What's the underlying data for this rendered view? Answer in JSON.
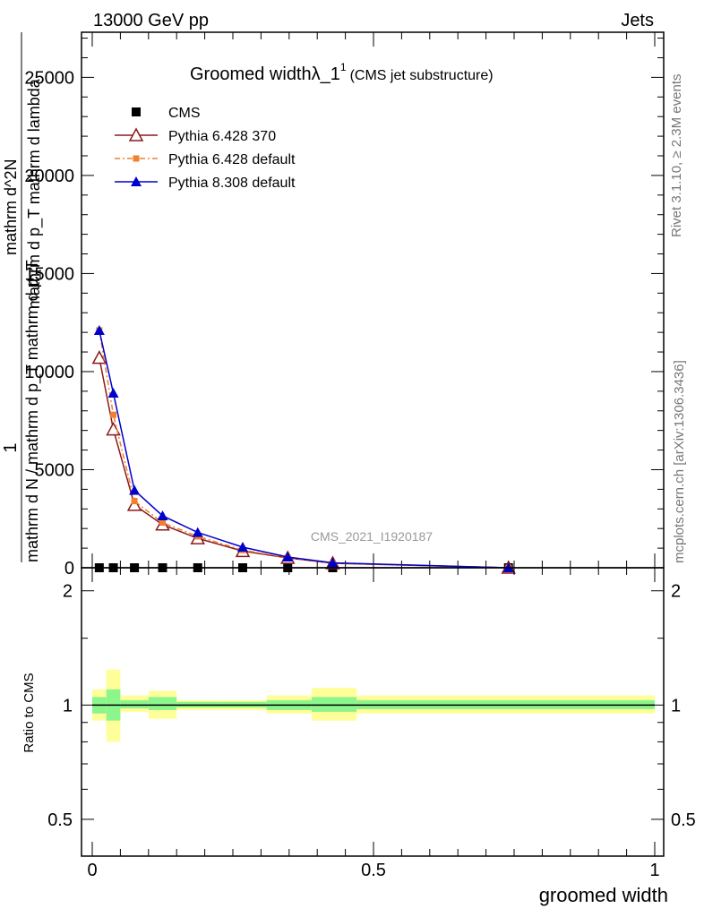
{
  "header": {
    "energy_label": "13000 GeV pp",
    "process_label": "Jets",
    "rivet_label": "Rivet 3.1.10, ≥ 2.3M events",
    "mcplots_label": "mcplots.cern.ch [arXiv:1306.3436]",
    "analysis_label": "CMS_2021_I1920187"
  },
  "chart_data": [
    {
      "type": "line",
      "title": "Groomed width",
      "title_lambda": "λ_1",
      "title_sup": "1",
      "subtitle": "(CMS jet substructure)",
      "ylabel_parts": [
        "1",
        "mathrm d N / mathrm d p_T mathrm d p_T",
        "mathrm d^2N",
        "mathrm d p_T mathrm d lambda"
      ],
      "xlabel": "groomed width",
      "xlim": [
        0,
        1
      ],
      "ylim": [
        0,
        27300
      ],
      "yticks": [
        0,
        5000,
        10000,
        15000,
        20000,
        25000
      ],
      "ytick_labels": [
        "0",
        "5000",
        "10000",
        "15000",
        "20000",
        "25000"
      ],
      "legend_position": "top-left",
      "series": [
        {
          "name": "CMS",
          "color": "#000000",
          "marker": "square",
          "line": "none",
          "x": [
            0.0125,
            0.0375,
            0.075,
            0.125,
            0.1875,
            0.2675,
            0.3475,
            0.4275,
            0.74
          ],
          "values": [
            0,
            0,
            0,
            0,
            0,
            0,
            0,
            0,
            0
          ]
        },
        {
          "name": "Pythia 6.428 370",
          "color": "#8b1a1a",
          "marker": "open-triangle",
          "line": "solid",
          "x": [
            0.0125,
            0.0375,
            0.075,
            0.125,
            0.1875,
            0.2675,
            0.3475,
            0.4275,
            0.74
          ],
          "values": [
            10700,
            7050,
            3200,
            2200,
            1500,
            850,
            500,
            230,
            0
          ]
        },
        {
          "name": "Pythia 6.428 default",
          "color": "#f08030",
          "marker": "square",
          "line": "dashdot",
          "x": [
            0.0125,
            0.0375,
            0.075,
            0.125,
            0.1875,
            0.2675,
            0.3475,
            0.4275,
            0.74
          ],
          "values": [
            12100,
            7800,
            3400,
            2300,
            1600,
            900,
            520,
            240,
            0
          ]
        },
        {
          "name": "Pythia 8.308 default",
          "color": "#0000cc",
          "marker": "triangle",
          "line": "solid",
          "x": [
            0.0125,
            0.0375,
            0.075,
            0.125,
            0.1875,
            0.2675,
            0.3475,
            0.4275,
            0.74
          ],
          "values": [
            12100,
            8900,
            3950,
            2650,
            1800,
            1050,
            550,
            250,
            0
          ]
        }
      ]
    },
    {
      "type": "area",
      "ylabel": "Ratio to CMS",
      "xlabel": "groomed width",
      "xlim": [
        0,
        1
      ],
      "ylim": [
        0.4,
        2.3
      ],
      "yscale": "log",
      "yticks": [
        0.5,
        1,
        2
      ],
      "ytick_labels": [
        "0.5",
        "1",
        "2"
      ],
      "xticks": [
        0,
        0.5,
        1
      ],
      "xtick_labels": [
        "0",
        "0.5",
        "1"
      ],
      "band_colors": {
        "inner": "#8cf58c",
        "outer": "#ffff99",
        "line": "#000000"
      },
      "bins": [
        {
          "lo": 0.0,
          "hi": 0.025,
          "inner": [
            0.95,
            1.05
          ],
          "outer": [
            0.91,
            1.1
          ]
        },
        {
          "lo": 0.025,
          "hi": 0.05,
          "inner": [
            0.91,
            1.1
          ],
          "outer": [
            0.8,
            1.24
          ]
        },
        {
          "lo": 0.05,
          "hi": 0.1,
          "inner": [
            0.98,
            1.03
          ],
          "outer": [
            0.96,
            1.06
          ]
        },
        {
          "lo": 0.1,
          "hi": 0.15,
          "inner": [
            0.97,
            1.05
          ],
          "outer": [
            0.92,
            1.09
          ]
        },
        {
          "lo": 0.15,
          "hi": 0.225,
          "inner": [
            0.985,
            1.02
          ],
          "outer": [
            0.97,
            1.03
          ]
        },
        {
          "lo": 0.225,
          "hi": 0.31,
          "inner": [
            0.985,
            1.02
          ],
          "outer": [
            0.97,
            1.03
          ]
        },
        {
          "lo": 0.31,
          "hi": 0.39,
          "inner": [
            0.97,
            1.03
          ],
          "outer": [
            0.95,
            1.06
          ]
        },
        {
          "lo": 0.39,
          "hi": 0.47,
          "inner": [
            0.96,
            1.05
          ],
          "outer": [
            0.91,
            1.11
          ]
        },
        {
          "lo": 0.47,
          "hi": 1.0,
          "inner": [
            0.975,
            1.03
          ],
          "outer": [
            0.95,
            1.06
          ]
        }
      ]
    }
  ]
}
